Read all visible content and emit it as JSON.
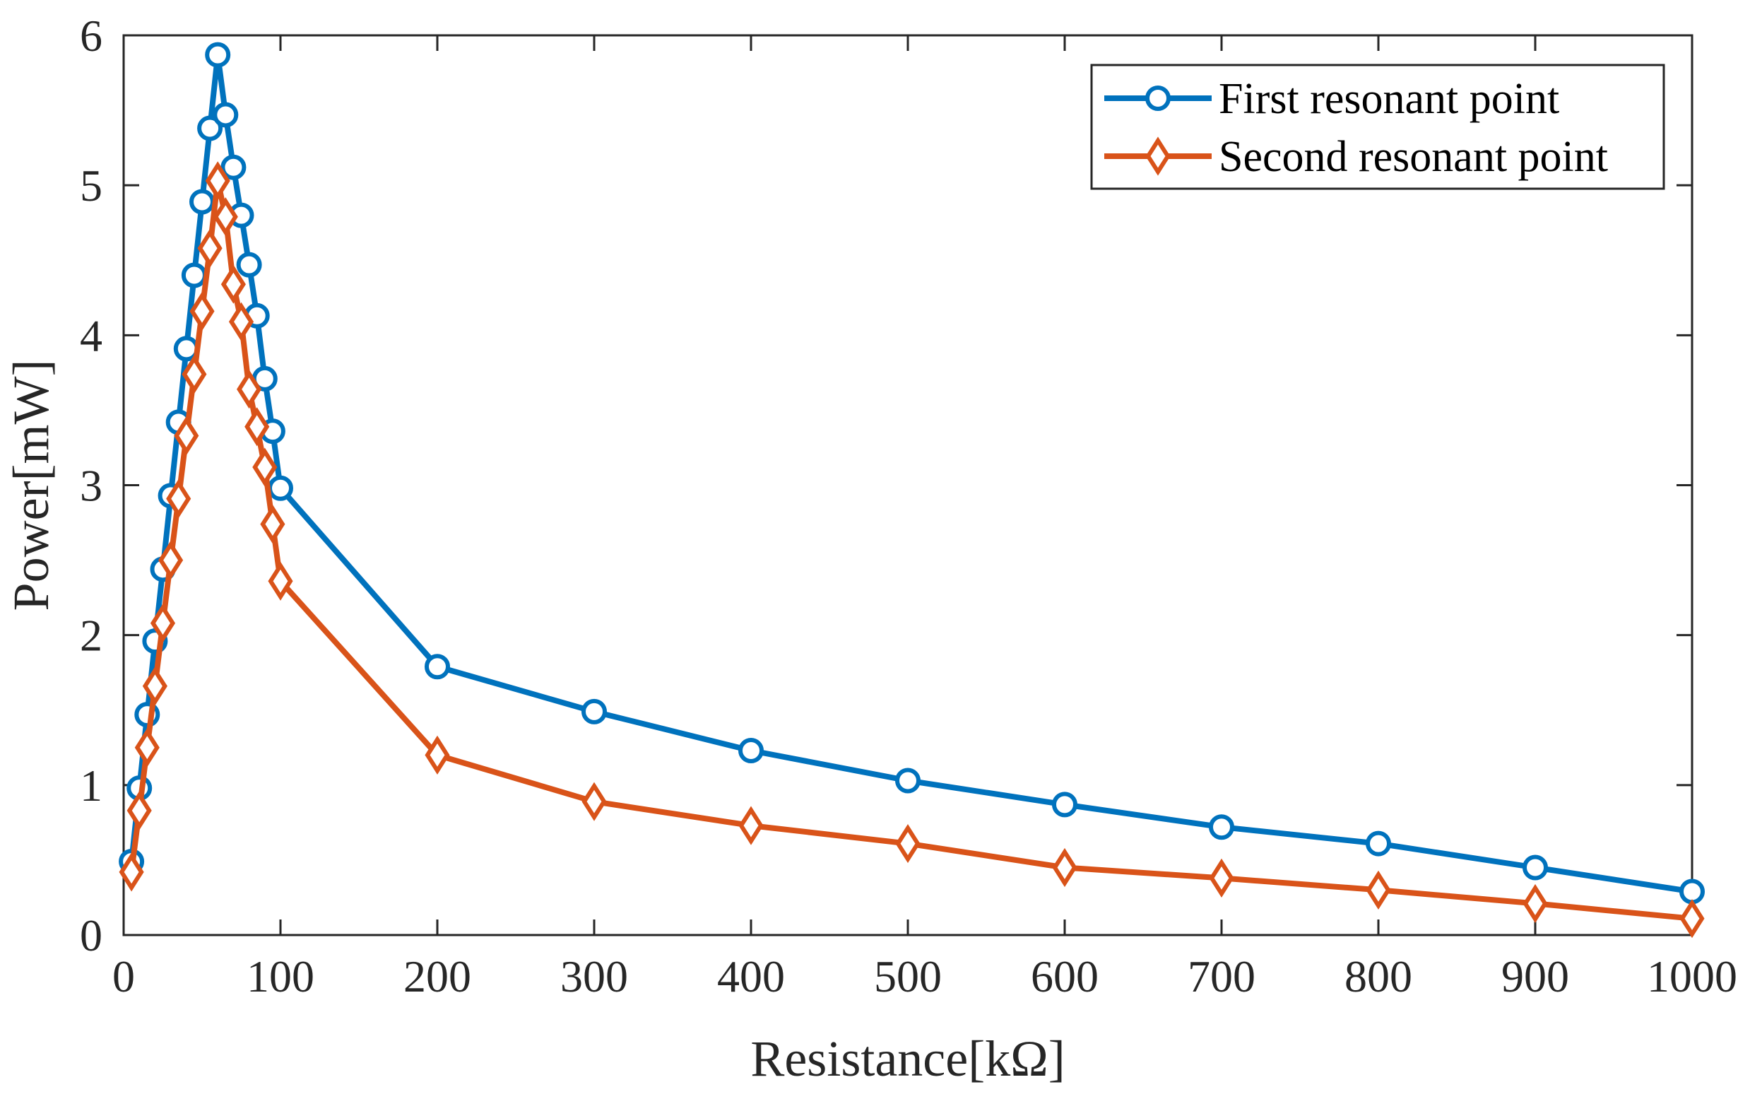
{
  "chart_data": {
    "type": "line",
    "title": "",
    "xlabel": "Resistance[kΩ]",
    "ylabel": "Power[mW]",
    "xlim": [
      0,
      1000
    ],
    "ylim": [
      0,
      6
    ],
    "xticks": [
      0,
      100,
      200,
      300,
      400,
      500,
      600,
      700,
      800,
      900,
      1000
    ],
    "yticks": [
      0,
      1,
      2,
      3,
      4,
      5,
      6
    ],
    "xtick_labels": [
      "0",
      "100",
      "200",
      "300",
      "400",
      "500",
      "600",
      "700",
      "800",
      "900",
      "1000"
    ],
    "ytick_labels": [
      "0",
      "1",
      "2",
      "3",
      "4",
      "5",
      "6"
    ],
    "legend_position": "top-right",
    "grid": false,
    "series": [
      {
        "name": "First resonant point",
        "color": "#0072BD",
        "marker": "circle",
        "x": [
          5,
          10,
          15,
          20,
          25,
          30,
          35,
          40,
          45,
          50,
          55,
          60,
          65,
          70,
          75,
          80,
          85,
          90,
          95,
          100,
          200,
          300,
          400,
          500,
          600,
          700,
          800,
          900,
          1000
        ],
        "y": [
          0.49,
          0.98,
          1.47,
          1.96,
          2.44,
          2.93,
          3.42,
          3.91,
          4.4,
          4.89,
          5.38,
          5.87,
          5.47,
          5.12,
          4.8,
          4.47,
          4.13,
          3.71,
          3.36,
          2.98,
          1.79,
          1.49,
          1.23,
          1.03,
          0.87,
          0.72,
          0.61,
          0.45,
          0.29
        ]
      },
      {
        "name": "Second resonant point",
        "color": "#D95319",
        "marker": "diamond",
        "x": [
          5,
          10,
          15,
          20,
          25,
          30,
          35,
          40,
          45,
          50,
          55,
          60,
          65,
          70,
          75,
          80,
          85,
          90,
          95,
          100,
          200,
          300,
          400,
          500,
          600,
          700,
          800,
          900,
          1000
        ],
        "y": [
          0.42,
          0.83,
          1.25,
          1.66,
          2.08,
          2.5,
          2.91,
          3.33,
          3.74,
          4.16,
          4.58,
          5.03,
          4.79,
          4.34,
          4.09,
          3.64,
          3.39,
          3.12,
          2.74,
          2.36,
          1.2,
          0.89,
          0.73,
          0.61,
          0.45,
          0.38,
          0.3,
          0.21,
          0.11
        ]
      }
    ]
  }
}
